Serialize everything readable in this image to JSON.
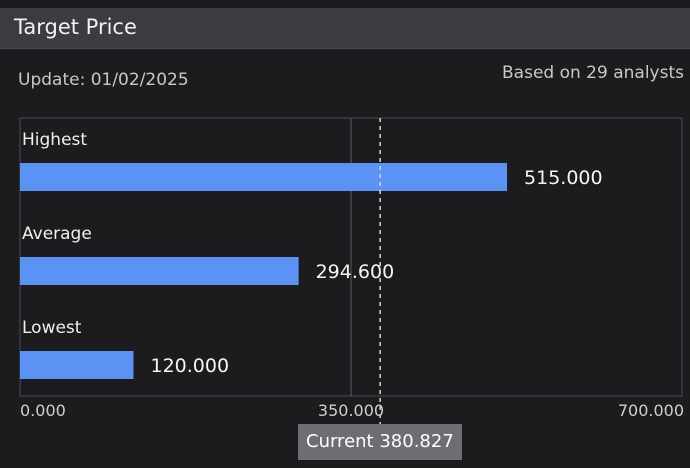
{
  "header": {
    "title": "Target Price"
  },
  "update_text": "Update: 01/02/2025",
  "analysts_text": "Based on 29 analysts",
  "current": {
    "label": "Current",
    "value": 380.827,
    "display": "380.827"
  },
  "colors": {
    "bar": "#5b93f5",
    "background": "#1c1c1f",
    "header": "#3b3b40",
    "current_box": "#6d6e72"
  },
  "chart_data": {
    "type": "bar",
    "orientation": "horizontal",
    "categories": [
      "Highest",
      "Average",
      "Lowest"
    ],
    "values": [
      515.0,
      294.6,
      120.0
    ],
    "value_labels": [
      "515.000",
      "294.600",
      "120.000"
    ],
    "xlim": [
      0,
      700
    ],
    "x_ticks": [
      0,
      350,
      700
    ],
    "x_tick_labels": [
      "0.000",
      "350.000",
      "700.000"
    ],
    "reference_line": {
      "value": 380.827,
      "style": "dashed"
    },
    "grid": "vertical line at 350"
  }
}
